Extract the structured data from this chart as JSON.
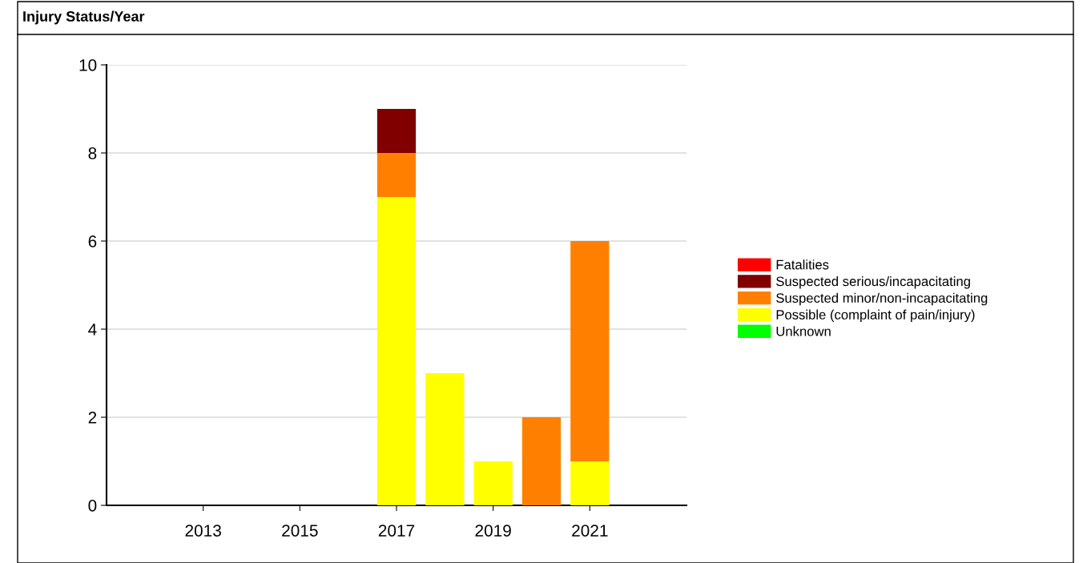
{
  "chart_data": {
    "type": "bar",
    "title": "Injury Status/Year",
    "stacked": true,
    "x": [
      2017,
      2018,
      2019,
      2020,
      2021
    ],
    "series": [
      {
        "name": "Unknown",
        "color": "#00ff00",
        "values": [
          0,
          0,
          0,
          0,
          0
        ]
      },
      {
        "name": "Possible (complaint of pain/injury)",
        "color": "#ffff00",
        "values": [
          7,
          3,
          1,
          0,
          1
        ]
      },
      {
        "name": "Suspected minor/non-incapacitating",
        "color": "#ff8000",
        "values": [
          1,
          0,
          0,
          2,
          5
        ]
      },
      {
        "name": "Suspected serious/incapacitating",
        "color": "#800000",
        "values": [
          1,
          0,
          0,
          0,
          0
        ]
      },
      {
        "name": "Fatalities",
        "color": "#ff0000",
        "values": [
          0,
          0,
          0,
          0,
          0
        ]
      }
    ],
    "xlim": [
      2011,
      2023
    ],
    "xticks": [
      2013,
      2015,
      2017,
      2019,
      2021
    ],
    "ylim": [
      0,
      10
    ],
    "yticks": [
      0,
      2,
      4,
      6,
      8,
      10
    ],
    "grid": "y",
    "legend": "right"
  }
}
